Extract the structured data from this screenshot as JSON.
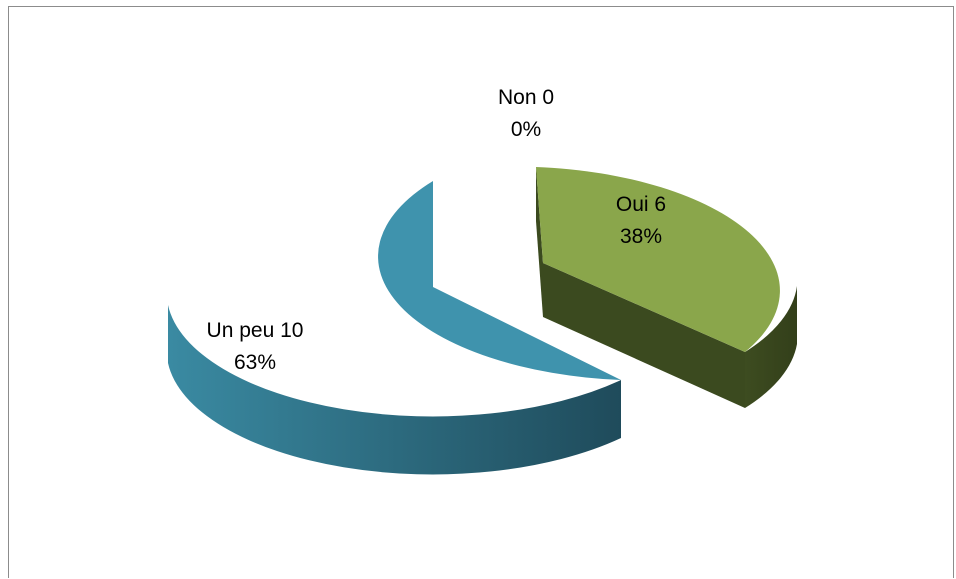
{
  "chart_data": {
    "type": "pie",
    "title": "",
    "slices": [
      {
        "category": "Oui",
        "value": 6,
        "percent": "38%",
        "color": "#8aa64b",
        "side_color": "#3b4a1f"
      },
      {
        "category": "Un peu",
        "value": 10,
        "percent": "63%",
        "color": "#3f93ad",
        "side_color": "#24586b"
      },
      {
        "category": "Non",
        "value": 0,
        "percent": "0%",
        "color": "#c0504d",
        "side_color": "#7a2e2c"
      }
    ],
    "three_d": true,
    "legend": "none"
  }
}
